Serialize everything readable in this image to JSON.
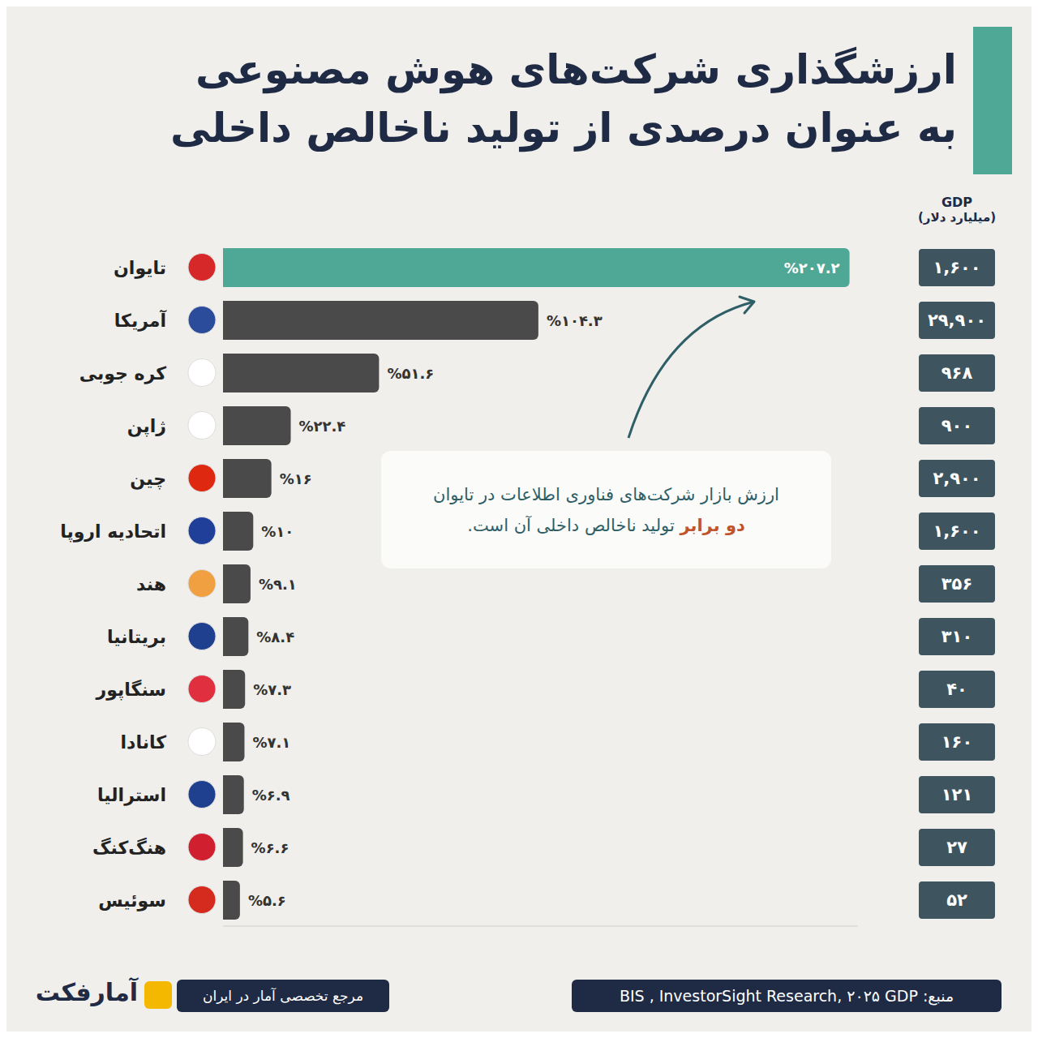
{
  "chart_data": {
    "type": "bar",
    "orientation": "horizontal",
    "title": "ارزشگذاری شرکت‌های هوش مصنوعی",
    "subtitle": "به عنوان درصدی از تولید ناخالص داخلی",
    "categories": [
      "تایوان",
      "آمریکا",
      "کره جوبی",
      "ژاپن",
      "چین",
      "اتحادیه اروپا",
      "هند",
      "بریتانیا",
      "سنگاپور",
      "کانادا",
      "استرالیا",
      "هنگ‌کنگ",
      "سوئیس"
    ],
    "values": [
      207.2,
      104.3,
      51.6,
      22.4,
      16,
      10,
      9.1,
      8.4,
      7.3,
      7.1,
      6.9,
      6.6,
      5.6
    ],
    "value_labels": [
      "%۲۰۷.۲",
      "%۱۰۴.۳",
      "%۵۱.۶",
      "%۲۲.۴",
      "%۱۶",
      "%۱۰",
      "%۹.۱",
      "%۸.۴",
      "%۷.۳",
      "%۷.۱",
      "%۶.۹",
      "%۶.۶",
      "%۵.۶"
    ],
    "colors": [
      "#4fa795",
      "#4a4a4a",
      "#4a4a4a",
      "#4a4a4a",
      "#4a4a4a",
      "#4a4a4a",
      "#4a4a4a",
      "#4a4a4a",
      "#4a4a4a",
      "#4a4a4a",
      "#4a4a4a",
      "#4a4a4a",
      "#4a4a4a"
    ],
    "data_labels": true,
    "tick_labels": "y",
    "xlim": [
      0,
      210
    ],
    "xticks": [],
    "gdp": {
      "title": "GDP",
      "subtitle": "(میلیارد دلار)",
      "values": [
        1600,
        29900,
        968,
        900,
        2900,
        1600,
        356,
        310,
        40,
        160,
        121,
        27,
        52
      ],
      "value_labels": [
        "۱,۶۰۰",
        "۲۹,۹۰۰",
        "۹۶۸",
        "۹۰۰",
        "۲,۹۰۰",
        "۱,۶۰۰",
        "۳۵۶",
        "۳۱۰",
        "۴۰",
        "۱۶۰",
        "۱۲۱",
        "۲۷",
        "۵۲"
      ]
    },
    "annotation": [
      "ارزش بازار شرکت‌های فناوری اطلاعات در تایوان",
      "دو برابر",
      "تولید ناخالص داخلی آن است."
    ],
    "source": "منبع: BIS , InvestorSight Research, ۲۰۲۵ GDP",
    "brand": "آمارفکت",
    "brand_tagline": "مرجع تخصصی آمار در ایران"
  }
}
